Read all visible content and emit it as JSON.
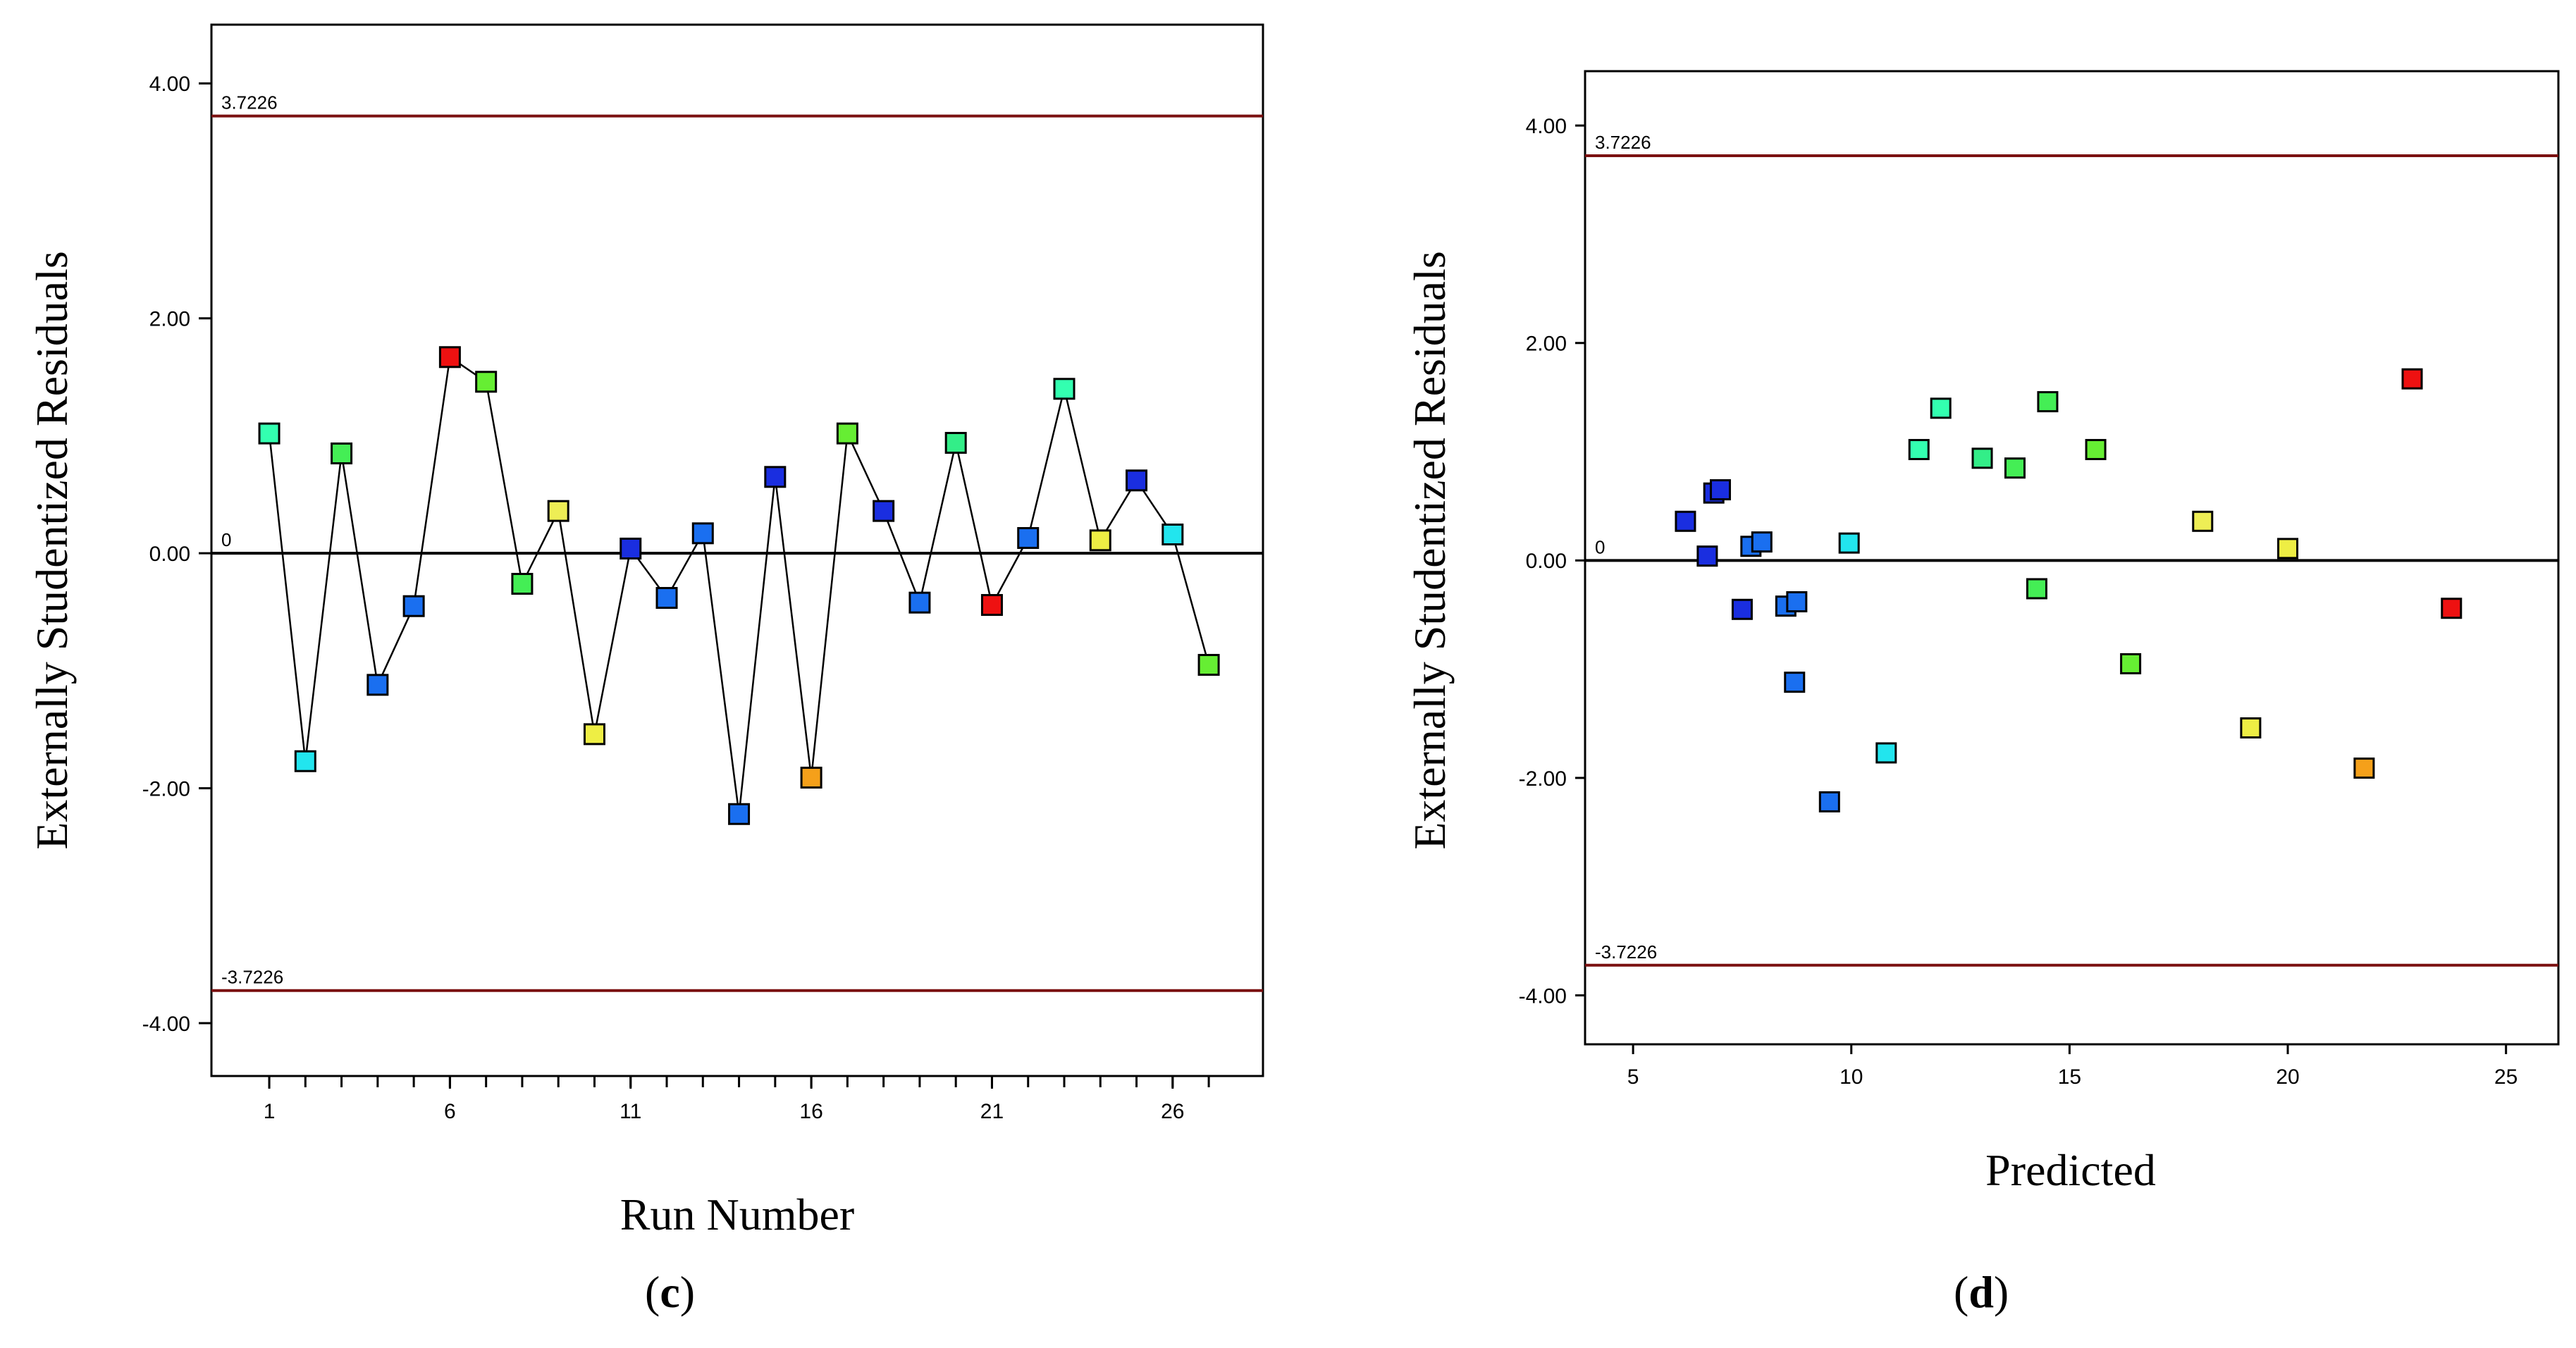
{
  "chart_data": [
    {
      "type": "line",
      "panel_label": "(c)",
      "letter": "c",
      "xlabel": "Run Number",
      "ylabel": "Externally Studentized Residuals",
      "xlim": [
        -0.6,
        28.5
      ],
      "ylim": [
        -4.45,
        4.5
      ],
      "xticks": [
        1,
        6,
        11,
        16,
        21,
        26
      ],
      "xminor_ticks": [
        1,
        2,
        3,
        4,
        5,
        6,
        7,
        8,
        9,
        10,
        11,
        12,
        13,
        14,
        15,
        16,
        17,
        18,
        19,
        20,
        21,
        22,
        23,
        24,
        25,
        26,
        27
      ],
      "yticks": [
        {
          "value": 4,
          "label": "4.00"
        },
        {
          "value": 2,
          "label": "2.00"
        },
        {
          "value": 0,
          "label": "0.00"
        },
        {
          "value": -2,
          "label": "-2.00"
        },
        {
          "value": -4,
          "label": "-4.00"
        }
      ],
      "reference_lines": [
        {
          "value": 3.7226,
          "label": "3.7226",
          "color": "#7a1010"
        },
        {
          "value": 0,
          "label": "0",
          "color": "#000000"
        },
        {
          "value": -3.7226,
          "label": "-3.7226",
          "color": "#7a1010"
        }
      ],
      "connected": true,
      "points": [
        {
          "x": 1,
          "y": 1.02,
          "color": "#33ffb0"
        },
        {
          "x": 2,
          "y": -1.77,
          "color": "#22e5ee"
        },
        {
          "x": 3,
          "y": 0.85,
          "color": "#44ee55"
        },
        {
          "x": 4,
          "y": -1.12,
          "color": "#1a6ff0"
        },
        {
          "x": 5,
          "y": -0.45,
          "color": "#1a6ff0"
        },
        {
          "x": 6,
          "y": 1.67,
          "color": "#ee1111"
        },
        {
          "x": 7,
          "y": 1.46,
          "color": "#66ee33"
        },
        {
          "x": 8,
          "y": -0.26,
          "color": "#44ee55"
        },
        {
          "x": 9,
          "y": 0.36,
          "color": "#eeee55"
        },
        {
          "x": 10,
          "y": -1.54,
          "color": "#eeee44"
        },
        {
          "x": 11,
          "y": 0.04,
          "color": "#1a2ee0"
        },
        {
          "x": 12,
          "y": -0.38,
          "color": "#1a6ff0"
        },
        {
          "x": 13,
          "y": 0.17,
          "color": "#1a6ff0"
        },
        {
          "x": 14,
          "y": -2.22,
          "color": "#1a6ff0"
        },
        {
          "x": 15,
          "y": 0.65,
          "color": "#1a2ee0"
        },
        {
          "x": 16,
          "y": -1.91,
          "color": "#f5a01a"
        },
        {
          "x": 17,
          "y": 1.02,
          "color": "#66ee33"
        },
        {
          "x": 18,
          "y": 0.36,
          "color": "#1a2ee0"
        },
        {
          "x": 19,
          "y": -0.42,
          "color": "#1a6ff0"
        },
        {
          "x": 20,
          "y": 0.94,
          "color": "#33ee88"
        },
        {
          "x": 21,
          "y": -0.44,
          "color": "#ee1111"
        },
        {
          "x": 22,
          "y": 0.13,
          "color": "#1a6ff0"
        },
        {
          "x": 23,
          "y": 1.4,
          "color": "#33ffb0"
        },
        {
          "x": 24,
          "y": 0.11,
          "color": "#eeee44"
        },
        {
          "x": 25,
          "y": 0.62,
          "color": "#1a2ee0"
        },
        {
          "x": 26,
          "y": 0.16,
          "color": "#22e5ee"
        },
        {
          "x": 27,
          "y": -0.95,
          "color": "#66ee33"
        }
      ]
    },
    {
      "type": "scatter",
      "panel_label": "(d)",
      "letter": "d",
      "xlabel": "Predicted",
      "ylabel": "Externally Studentized Residuals",
      "xlim": [
        3.9,
        26.2
      ],
      "ylim": [
        -4.45,
        4.5
      ],
      "xticks": [
        5,
        10,
        15,
        20,
        25
      ],
      "xminor_ticks": [],
      "yticks": [
        {
          "value": 4,
          "label": "4.00"
        },
        {
          "value": 2,
          "label": "2.00"
        },
        {
          "value": 0,
          "label": "0.00"
        },
        {
          "value": -2,
          "label": "-2.00"
        },
        {
          "value": -4,
          "label": "-4.00"
        }
      ],
      "reference_lines": [
        {
          "value": 3.7226,
          "label": "3.7226",
          "color": "#7a1010"
        },
        {
          "value": 0,
          "label": "0",
          "color": "#000000"
        },
        {
          "value": -3.7226,
          "label": "-3.7226",
          "color": "#7a1010"
        }
      ],
      "connected": false,
      "points": [
        {
          "x": 6.2,
          "y": 0.36,
          "color": "#1a2ee0"
        },
        {
          "x": 6.7,
          "y": 0.04,
          "color": "#1a2ee0"
        },
        {
          "x": 6.85,
          "y": 0.62,
          "color": "#1a2ee0"
        },
        {
          "x": 7.0,
          "y": 0.65,
          "color": "#1a2ee0"
        },
        {
          "x": 7.5,
          "y": -0.45,
          "color": "#1a2ee0"
        },
        {
          "x": 7.7,
          "y": 0.13,
          "color": "#1a6ff0"
        },
        {
          "x": 7.95,
          "y": 0.17,
          "color": "#1a6ff0"
        },
        {
          "x": 8.5,
          "y": -0.42,
          "color": "#1a6ff0"
        },
        {
          "x": 8.75,
          "y": -0.38,
          "color": "#1a6ff0"
        },
        {
          "x": 8.7,
          "y": -1.12,
          "color": "#1a6ff0"
        },
        {
          "x": 9.5,
          "y": -2.22,
          "color": "#1a6ff0"
        },
        {
          "x": 9.95,
          "y": 0.16,
          "color": "#22e5ee"
        },
        {
          "x": 10.8,
          "y": -1.77,
          "color": "#22e5ee"
        },
        {
          "x": 11.55,
          "y": 1.02,
          "color": "#33ffb0"
        },
        {
          "x": 12.05,
          "y": 1.4,
          "color": "#33ffb0"
        },
        {
          "x": 13.0,
          "y": 0.94,
          "color": "#33ee88"
        },
        {
          "x": 13.75,
          "y": 0.85,
          "color": "#44ee55"
        },
        {
          "x": 14.25,
          "y": -0.26,
          "color": "#44ee55"
        },
        {
          "x": 14.5,
          "y": 1.46,
          "color": "#44ee55"
        },
        {
          "x": 15.6,
          "y": 1.02,
          "color": "#66ee33"
        },
        {
          "x": 16.4,
          "y": -0.95,
          "color": "#66ee33"
        },
        {
          "x": 18.05,
          "y": 0.36,
          "color": "#eeee55"
        },
        {
          "x": 19.15,
          "y": -1.54,
          "color": "#eeee44"
        },
        {
          "x": 20.0,
          "y": 0.11,
          "color": "#eeee44"
        },
        {
          "x": 21.75,
          "y": -1.91,
          "color": "#f5a01a"
        },
        {
          "x": 22.85,
          "y": 1.67,
          "color": "#ee1111"
        },
        {
          "x": 23.75,
          "y": -0.44,
          "color": "#ee1111"
        }
      ]
    }
  ]
}
